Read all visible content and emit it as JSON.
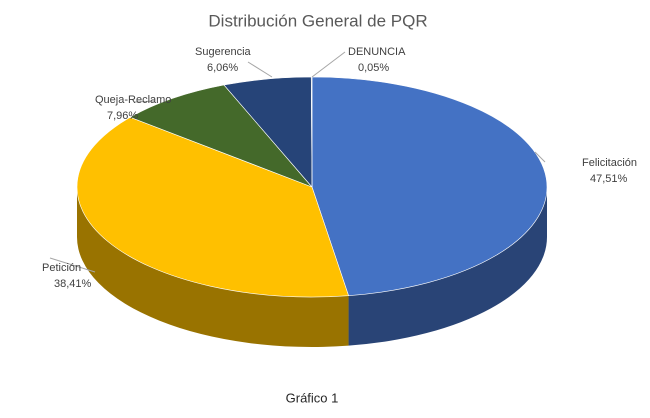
{
  "chart_data": {
    "type": "pie3d",
    "title": "Distribución General de PQR",
    "categories": [
      "Felicitación",
      "Petición",
      "Queja-Reclamo",
      "Sugerencia",
      "DENUNCIA"
    ],
    "values": [
      47.51,
      38.41,
      7.96,
      6.06,
      0.05
    ],
    "value_labels": [
      "47,51%",
      "38,41%",
      "7,96%",
      "6,06%",
      "0,05%"
    ],
    "colors": [
      "#4472c4",
      "#ffc000",
      "#44692a",
      "#264478",
      "#7f7f7f"
    ],
    "caption": "Gráfico 1"
  }
}
